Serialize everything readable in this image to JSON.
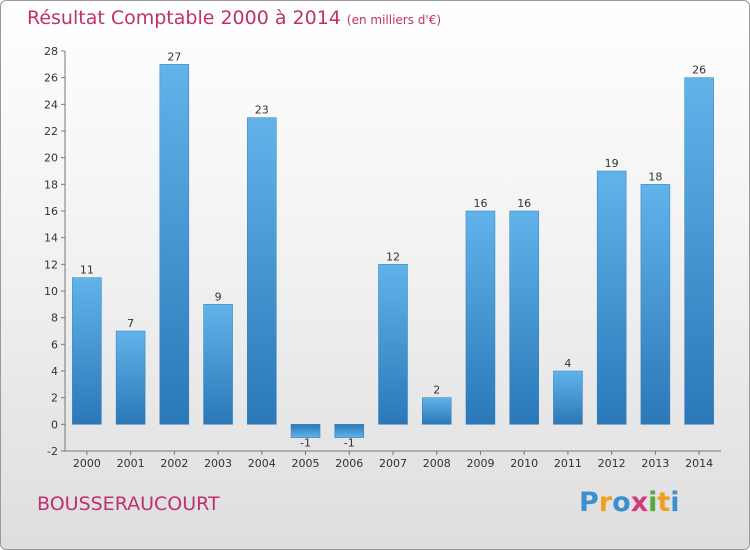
{
  "header": {
    "title": "Résultat Comptable 2000 à 2014",
    "unit": "(en milliers d'€)"
  },
  "footer": {
    "commune": "BOUSSERAUCOURT",
    "logo_text": "Proxiti"
  },
  "colors": {
    "title": "#c0306e",
    "bar_light": "#62b3ea",
    "bar_dark": "#2a78b8"
  },
  "chart_data": {
    "type": "bar",
    "title": "Résultat Comptable 2000 à 2014",
    "subtitle": "(en milliers d'€)",
    "xlabel": "",
    "ylabel": "",
    "categories": [
      "2000",
      "2001",
      "2002",
      "2003",
      "2004",
      "2005",
      "2006",
      "2007",
      "2008",
      "2009",
      "2010",
      "2011",
      "2012",
      "2013",
      "2014"
    ],
    "values": [
      11,
      7,
      27,
      9,
      23,
      -1,
      -1,
      12,
      2,
      16,
      16,
      4,
      19,
      18,
      26
    ],
    "ylim": [
      -2,
      28
    ],
    "yticks": [
      -2,
      0,
      2,
      4,
      6,
      8,
      10,
      12,
      14,
      16,
      18,
      20,
      22,
      24,
      26,
      28
    ],
    "grid": false
  }
}
